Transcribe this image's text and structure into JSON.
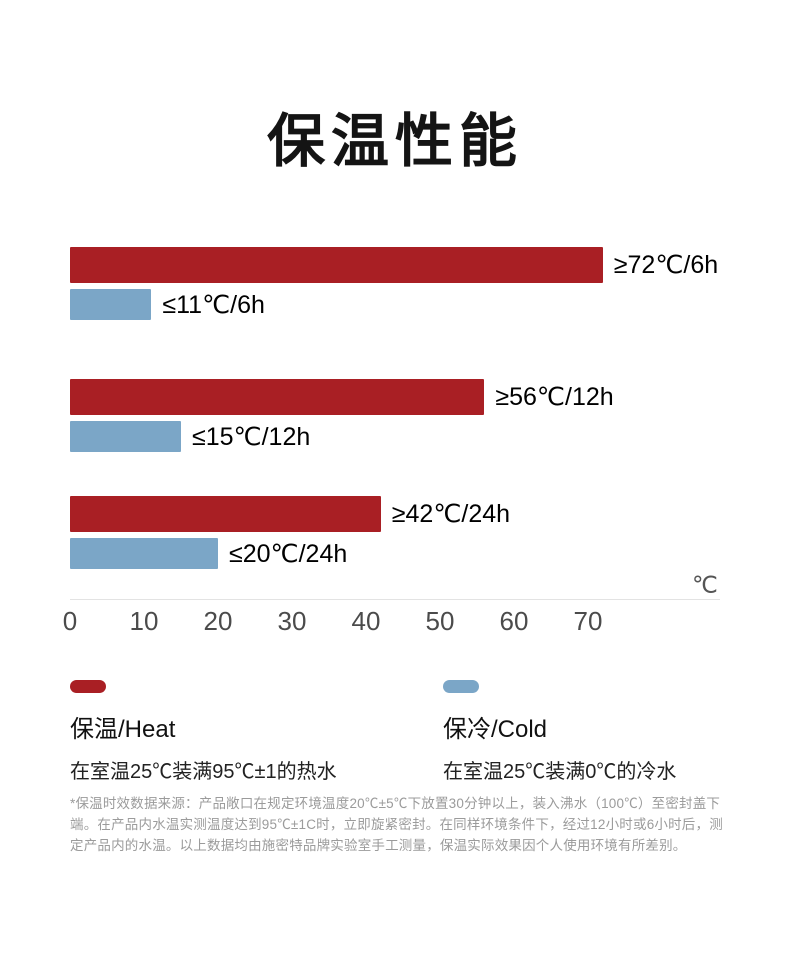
{
  "title": "保温性能",
  "chart_data": {
    "type": "bar",
    "orientation": "horizontal",
    "title": "保温性能",
    "categories": [
      "6h",
      "12h",
      "24h"
    ],
    "series": [
      {
        "name": "保温/Heat",
        "color": "#A91F24",
        "values": [
          72,
          56,
          42
        ],
        "labels": [
          "≥72℃/6h",
          "≥56℃/12h",
          "≥42℃/24h"
        ]
      },
      {
        "name": "保冷/Cold",
        "color": "#7BA6C7",
        "values": [
          11,
          15,
          20
        ],
        "labels": [
          "≤11℃/6h",
          "≤15℃/12h",
          "≤20℃/24h"
        ]
      }
    ],
    "x_ticks": [
      "0",
      "10",
      "20",
      "30",
      "40",
      "50",
      "60",
      "70"
    ],
    "x_unit": "℃",
    "xlim": [
      0,
      79
    ],
    "grid": false,
    "legend_position": "bottom"
  },
  "legend": {
    "heat": {
      "label": "保温/Heat",
      "description": "在室温25℃装满95℃±1的热水",
      "color": "#A91F24"
    },
    "cold": {
      "label": "保冷/Cold",
      "description": "在室温25℃装满0℃的冷水",
      "color": "#7BA6C7"
    }
  },
  "axis": {
    "unit": "℃"
  },
  "footnote": "*保温时效数据来源：产品敞口在规定环境温度20℃±5℃下放置30分钟以上，装入沸水（100℃）至密封盖下端。在产品内水温实测温度达到95℃±1C时，立即旋紧密封。在同样环境条件下，经过12小时或6小时后，测定产品内的水温。以上数据均由施密特品牌实验室手工测量，保温实际效果因个人使用环境有所差别。"
}
